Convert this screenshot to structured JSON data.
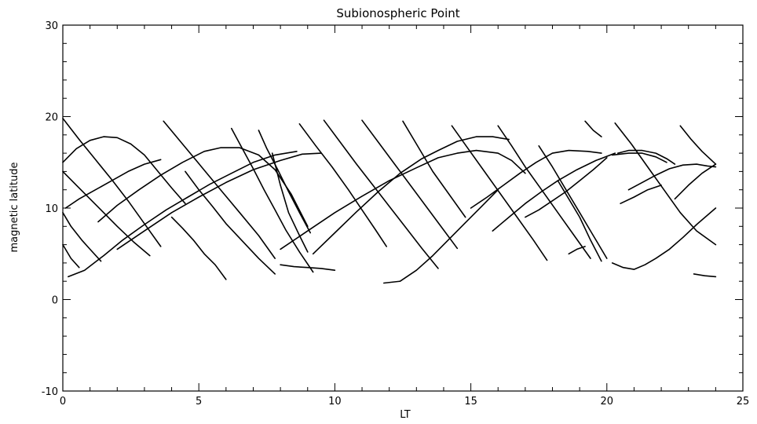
{
  "chart_data": {
    "type": "line",
    "title": "Subionospheric Point",
    "xlabel": "LT",
    "ylabel": "magnetic latitude",
    "xlim": [
      0,
      25
    ],
    "ylim": [
      -10,
      30
    ],
    "xticks": [
      0,
      5,
      10,
      15,
      20,
      25
    ],
    "yticks": [
      -10,
      0,
      10,
      20,
      30
    ],
    "x_minor_step": 1,
    "y_minor_step": 2,
    "grid": false,
    "legend": "none",
    "series": [
      {
        "x": [
          0.0,
          0.5,
          1.0,
          1.5,
          2.0,
          2.5,
          3.0,
          3.5,
          4.0,
          4.5
        ],
        "y": [
          15.0,
          16.5,
          17.4,
          17.8,
          17.7,
          17.0,
          15.8,
          14.0,
          12.2,
          10.5
        ]
      },
      {
        "x": [
          0.1,
          0.6,
          1.2,
          1.8,
          2.4,
          3.0,
          3.6
        ],
        "y": [
          10.0,
          11.0,
          12.0,
          13.0,
          14.0,
          14.8,
          15.3
        ]
      },
      {
        "x": [
          0.2,
          0.8,
          1.5,
          2.2,
          3.0,
          3.8,
          4.6,
          5.4,
          6.2,
          7.0,
          7.8,
          8.6
        ],
        "y": [
          2.5,
          3.2,
          4.8,
          6.5,
          8.2,
          9.8,
          11.2,
          12.6,
          13.8,
          15.0,
          15.8,
          16.2
        ]
      },
      {
        "x": [
          1.3,
          2.0,
          2.8,
          3.6,
          4.4,
          5.2,
          5.8,
          6.5,
          7.2,
          7.8,
          8.4,
          9.0
        ],
        "y": [
          8.5,
          10.3,
          12.0,
          13.6,
          15.0,
          16.2,
          16.6,
          16.6,
          15.8,
          14.2,
          11.5,
          8.0
        ]
      },
      {
        "x": [
          2.0,
          3.0,
          4.0,
          5.0,
          6.0,
          7.0,
          8.0,
          8.8,
          9.5
        ],
        "y": [
          5.5,
          7.5,
          9.5,
          11.2,
          12.8,
          14.2,
          15.2,
          15.9,
          16.0
        ]
      },
      {
        "x": [
          0.0,
          0.6,
          1.2,
          1.8,
          2.4,
          3.0,
          3.6
        ],
        "y": [
          19.8,
          17.5,
          15.3,
          13.1,
          10.8,
          8.3,
          5.8
        ]
      },
      {
        "x": [
          0.0,
          0.5,
          1.0,
          1.5,
          2.0,
          2.6,
          3.2
        ],
        "y": [
          14.0,
          12.5,
          11.0,
          9.5,
          8.0,
          6.3,
          4.8
        ]
      },
      {
        "x": [
          0.0,
          0.3,
          0.7,
          1.0,
          1.4
        ],
        "y": [
          9.5,
          8.0,
          6.5,
          5.5,
          4.2
        ]
      },
      {
        "x": [
          0.0,
          0.3,
          0.6
        ],
        "y": [
          6.0,
          4.5,
          3.5
        ]
      },
      {
        "x": [
          3.7,
          4.4,
          5.1,
          5.8,
          6.5,
          7.2,
          7.8
        ],
        "y": [
          19.5,
          17.0,
          14.5,
          12.0,
          9.5,
          7.0,
          4.5
        ]
      },
      {
        "x": [
          4.5,
          5.0,
          5.5,
          6.0,
          6.6,
          7.2,
          7.8
        ],
        "y": [
          14.0,
          12.0,
          10.2,
          8.3,
          6.4,
          4.5,
          2.8
        ]
      },
      {
        "x": [
          4.0,
          4.4,
          4.8,
          5.2,
          5.6,
          6.0
        ],
        "y": [
          9.0,
          7.8,
          6.5,
          5.0,
          3.8,
          2.2
        ]
      },
      {
        "x": [
          6.2,
          6.6,
          7.0,
          7.4,
          7.8,
          8.2,
          8.7,
          9.2
        ],
        "y": [
          18.7,
          16.5,
          14.3,
          12.0,
          9.8,
          7.6,
          5.2,
          3.0
        ]
      },
      {
        "x": [
          7.2,
          7.5,
          7.9,
          8.3,
          8.7,
          9.1
        ],
        "y": [
          18.5,
          16.5,
          14.2,
          11.8,
          9.5,
          7.3
        ]
      },
      {
        "x": [
          7.7,
          8.0,
          8.3,
          8.7,
          9.0
        ],
        "y": [
          16.0,
          12.5,
          9.5,
          7.0,
          5.2
        ]
      },
      {
        "x": [
          8.0,
          8.5,
          9.0,
          9.5,
          10.0
        ],
        "y": [
          3.8,
          3.6,
          3.5,
          3.4,
          3.2
        ]
      },
      {
        "x": [
          8.7,
          9.3,
          9.9,
          10.5,
          11.0,
          11.5,
          11.9
        ],
        "y": [
          19.2,
          16.8,
          14.5,
          12.0,
          9.8,
          7.6,
          5.8
        ]
      },
      {
        "x": [
          9.6,
          10.2,
          10.8,
          11.4,
          12.0,
          12.6,
          13.2,
          13.8
        ],
        "y": [
          19.6,
          17.2,
          14.8,
          12.5,
          10.2,
          7.9,
          5.6,
          3.4
        ]
      },
      {
        "x": [
          11.0,
          11.6,
          12.2,
          12.8,
          13.4,
          14.0,
          14.5
        ],
        "y": [
          19.6,
          17.2,
          14.8,
          12.4,
          10.0,
          7.6,
          5.6
        ]
      },
      {
        "x": [
          11.8,
          12.4,
          13.0,
          13.6,
          14.2,
          14.8,
          15.4,
          16.0
        ],
        "y": [
          1.8,
          2.0,
          3.2,
          4.8,
          6.6,
          8.4,
          10.2,
          12.0
        ]
      },
      {
        "x": [
          8.0,
          9.0,
          10.0,
          11.0,
          12.0,
          13.0,
          13.8,
          14.5,
          15.2,
          16.0,
          16.5,
          17.0
        ],
        "y": [
          5.5,
          7.5,
          9.5,
          11.3,
          13.0,
          14.4,
          15.5,
          16.0,
          16.3,
          16.0,
          15.2,
          13.8
        ]
      },
      {
        "x": [
          9.2,
          10.0,
          10.8,
          11.6,
          12.4,
          13.2,
          13.8,
          14.5,
          15.2,
          15.8,
          16.4
        ],
        "y": [
          5.0,
          7.3,
          9.6,
          11.8,
          13.8,
          15.4,
          16.3,
          17.3,
          17.8,
          17.8,
          17.5
        ]
      },
      {
        "x": [
          12.5,
          13.0,
          13.6,
          14.2,
          14.8
        ],
        "y": [
          19.5,
          17.0,
          14.0,
          11.5,
          9.0
        ]
      },
      {
        "x": [
          14.3,
          14.9,
          15.5,
          16.1,
          16.7,
          17.3,
          17.8
        ],
        "y": [
          19.0,
          16.5,
          14.0,
          11.5,
          9.0,
          6.5,
          4.3
        ]
      },
      {
        "x": [
          15.0,
          15.6,
          16.2,
          16.8,
          17.4,
          18.0,
          18.6,
          19.3,
          19.8
        ],
        "y": [
          10.0,
          11.2,
          12.5,
          13.8,
          15.0,
          16.0,
          16.3,
          16.2,
          16.0
        ]
      },
      {
        "x": [
          15.8,
          16.4,
          17.0,
          17.6,
          18.2,
          18.9,
          19.6,
          20.3
        ],
        "y": [
          7.5,
          9.0,
          10.5,
          11.8,
          13.0,
          14.2,
          15.2,
          16.0
        ]
      },
      {
        "x": [
          17.0,
          17.5,
          18.0,
          18.5,
          19.0,
          19.5,
          20.0
        ],
        "y": [
          9.0,
          9.8,
          10.8,
          11.8,
          13.0,
          14.2,
          15.5
        ]
      },
      {
        "x": [
          16.0,
          16.5,
          17.0,
          17.6,
          18.2,
          18.8,
          19.4
        ],
        "y": [
          19.0,
          16.8,
          14.5,
          12.0,
          9.5,
          7.0,
          4.5
        ]
      },
      {
        "x": [
          17.5,
          18.0,
          18.5,
          19.0,
          19.5,
          20.0
        ],
        "y": [
          16.8,
          14.5,
          12.0,
          9.5,
          7.0,
          4.5
        ]
      },
      {
        "x": [
          18.2,
          18.6,
          19.0,
          19.4,
          19.8
        ],
        "y": [
          13.0,
          11.0,
          9.0,
          6.5,
          4.2
        ]
      },
      {
        "x": [
          19.2,
          19.5,
          19.8
        ],
        "y": [
          19.5,
          18.5,
          17.8
        ]
      },
      {
        "x": [
          20.3,
          20.9,
          21.5,
          22.1,
          22.7,
          23.3,
          24.0
        ],
        "y": [
          19.3,
          17.0,
          14.5,
          12.0,
          9.5,
          7.5,
          6.0
        ]
      },
      {
        "x": [
          20.2,
          20.8,
          21.3,
          21.8,
          22.2
        ],
        "y": [
          15.8,
          16.0,
          16.0,
          15.6,
          15.0
        ]
      },
      {
        "x": [
          20.4,
          20.8,
          21.3,
          21.8,
          22.2,
          22.5
        ],
        "y": [
          16.0,
          16.3,
          16.3,
          16.0,
          15.4,
          14.8
        ]
      },
      {
        "x": [
          22.7,
          23.1,
          23.5,
          24.0
        ],
        "y": [
          19.0,
          17.5,
          16.2,
          14.8
        ]
      },
      {
        "x": [
          20.8,
          21.3,
          21.8,
          22.3,
          22.8,
          23.3,
          23.7,
          24.0
        ],
        "y": [
          12.0,
          12.8,
          13.6,
          14.3,
          14.7,
          14.8,
          14.6,
          14.5
        ]
      },
      {
        "x": [
          20.2,
          20.6,
          21.0,
          21.4,
          21.8,
          22.3,
          22.8,
          23.3,
          24.0
        ],
        "y": [
          4.0,
          3.5,
          3.3,
          3.8,
          4.5,
          5.5,
          6.8,
          8.2,
          10.0
        ]
      },
      {
        "x": [
          22.5,
          23.0,
          23.5,
          24.0
        ],
        "y": [
          11.0,
          12.5,
          13.8,
          14.8
        ]
      },
      {
        "x": [
          20.5,
          21.0,
          21.5,
          22.0
        ],
        "y": [
          10.5,
          11.2,
          12.0,
          12.5
        ]
      },
      {
        "x": [
          18.6,
          18.9,
          19.2
        ],
        "y": [
          5.0,
          5.5,
          5.8
        ]
      },
      {
        "x": [
          23.2,
          23.6,
          24.0
        ],
        "y": [
          2.8,
          2.6,
          2.5
        ]
      }
    ]
  }
}
